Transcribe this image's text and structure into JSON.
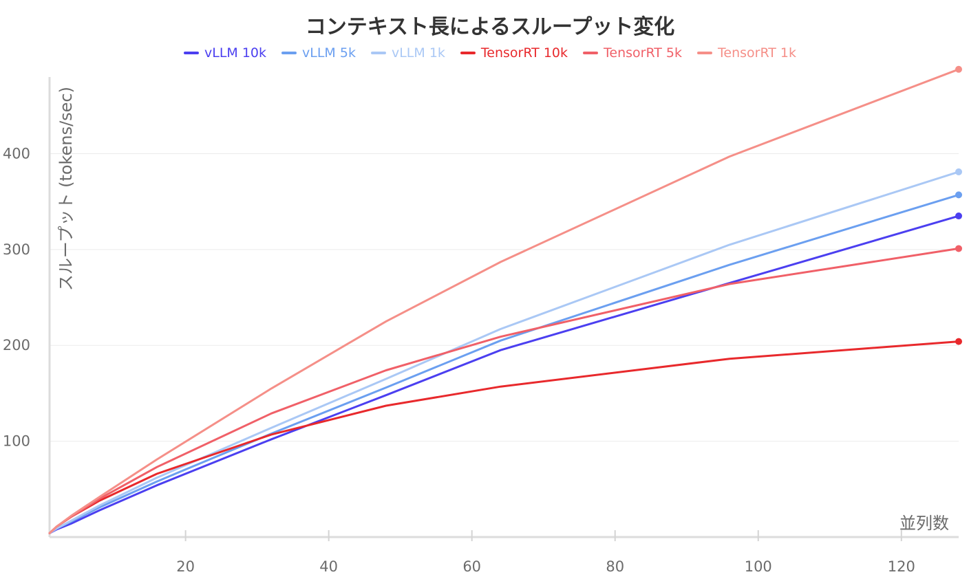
{
  "chart_data": {
    "type": "line",
    "title": "コンテキスト長によるスループット変化",
    "xlabel": "並列数",
    "ylabel": "スループット (tokens/sec)",
    "xlim": [
      1,
      128
    ],
    "ylim": [
      0,
      490
    ],
    "x_ticks": [
      20,
      40,
      60,
      80,
      100,
      120
    ],
    "y_ticks": [
      100,
      200,
      300,
      400
    ],
    "grid": "horizontal",
    "legend_position": "top-center",
    "x": [
      1,
      2,
      4,
      8,
      16,
      32,
      48,
      64,
      96,
      128
    ],
    "series": [
      {
        "name": "vLLM 10k",
        "color": "#4b3ff0",
        "values": [
          4,
          8,
          14,
          28,
          54,
          102,
          148,
          195,
          265,
          335
        ]
      },
      {
        "name": "vLLM 5k",
        "color": "#6b9ff0",
        "values": [
          4,
          9,
          16,
          31,
          58,
          108,
          156,
          205,
          284,
          357
        ]
      },
      {
        "name": "vLLM 1k",
        "color": "#aac8f5",
        "values": [
          4,
          9,
          17,
          33,
          62,
          114,
          165,
          217,
          305,
          381
        ]
      },
      {
        "name": "TensorRT 10k",
        "color": "#e8292c",
        "values": [
          4,
          11,
          21,
          38,
          66,
          107,
          137,
          157,
          186,
          204
        ]
      },
      {
        "name": "TensorRT 5k",
        "color": "#f06068",
        "values": [
          4,
          11,
          21,
          40,
          73,
          129,
          174,
          209,
          264,
          301
        ]
      },
      {
        "name": "TensorRT 1k",
        "color": "#f58f88",
        "values": [
          4,
          11,
          22,
          42,
          81,
          155,
          225,
          287,
          397,
          488
        ]
      }
    ]
  }
}
